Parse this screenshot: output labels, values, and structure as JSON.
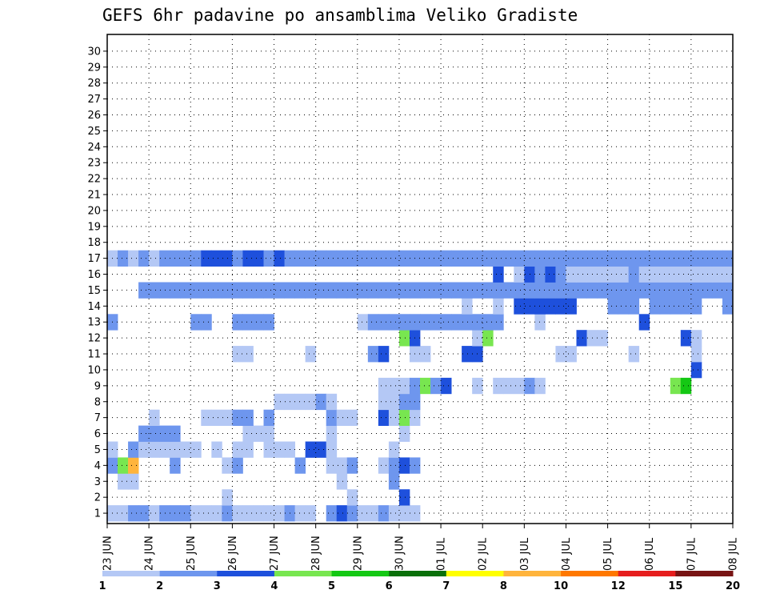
{
  "chart_data": {
    "type": "heatmap",
    "title": "GEFS 6hr padavine po ansamblima Veliko Gradiste",
    "y_member_labels": [
      "1",
      "2",
      "3",
      "4",
      "5",
      "6",
      "7",
      "8",
      "9",
      "10",
      "11",
      "12",
      "13",
      "14",
      "15",
      "16",
      "17",
      "18",
      "19",
      "20",
      "21",
      "22",
      "23",
      "24",
      "25",
      "26",
      "27",
      "28",
      "29",
      "30"
    ],
    "x_date_labels": [
      "23 JUN",
      "24 JUN",
      "25 JUN",
      "26 JUN",
      "27 JUN",
      "28 JUN",
      "29 JUN",
      "30 JUN",
      "01 JUL",
      "02 JUL",
      "03 JUL",
      "04 JUL",
      "05 JUL",
      "06 JUL",
      "07 JUL",
      "08 JUL"
    ],
    "x_steps_total": 60,
    "grid": "dotted",
    "colorbar": {
      "labels": [
        "1",
        "2",
        "3",
        "4",
        "5",
        "6",
        "7",
        "8",
        "10",
        "12",
        "15",
        "20"
      ],
      "colors": [
        "#b4c8f5",
        "#6e96ee",
        "#1e50dc",
        "#78e650",
        "#14c814",
        "#0a700a",
        "#ffff00",
        "#ffb43c",
        "#ff7800",
        "#e61e1e",
        "#781414"
      ]
    },
    "cells": [
      [
        1,
        1,
        0
      ],
      [
        1,
        2,
        0
      ],
      [
        1,
        3,
        1
      ],
      [
        1,
        4,
        1
      ],
      [
        1,
        5,
        0
      ],
      [
        1,
        6,
        1
      ],
      [
        1,
        7,
        1
      ],
      [
        1,
        8,
        1
      ],
      [
        1,
        9,
        0
      ],
      [
        1,
        10,
        0
      ],
      [
        1,
        11,
        0
      ],
      [
        1,
        12,
        1
      ],
      [
        1,
        13,
        0
      ],
      [
        1,
        14,
        0
      ],
      [
        1,
        15,
        0
      ],
      [
        1,
        16,
        0
      ],
      [
        1,
        17,
        0
      ],
      [
        1,
        18,
        1
      ],
      [
        1,
        19,
        0
      ],
      [
        1,
        20,
        0
      ],
      [
        1,
        22,
        1
      ],
      [
        1,
        23,
        2
      ],
      [
        1,
        24,
        1
      ],
      [
        1,
        25,
        0
      ],
      [
        1,
        26,
        0
      ],
      [
        1,
        27,
        1
      ],
      [
        1,
        28,
        0
      ],
      [
        1,
        29,
        0
      ],
      [
        1,
        30,
        0
      ],
      [
        2,
        12,
        0
      ],
      [
        2,
        24,
        0
      ],
      [
        2,
        29,
        2
      ],
      [
        3,
        2,
        0
      ],
      [
        3,
        3,
        0
      ],
      [
        3,
        23,
        0
      ],
      [
        3,
        28,
        1
      ],
      [
        4,
        1,
        1
      ],
      [
        4,
        2,
        3
      ],
      [
        4,
        3,
        7
      ],
      [
        4,
        7,
        1
      ],
      [
        4,
        12,
        0
      ],
      [
        4,
        13,
        1
      ],
      [
        4,
        19,
        1
      ],
      [
        4,
        22,
        0
      ],
      [
        4,
        23,
        0
      ],
      [
        4,
        24,
        1
      ],
      [
        4,
        27,
        0
      ],
      [
        4,
        28,
        1
      ],
      [
        4,
        29,
        2
      ],
      [
        4,
        30,
        1
      ],
      [
        5,
        1,
        0
      ],
      [
        5,
        3,
        1
      ],
      [
        5,
        4,
        0
      ],
      [
        5,
        5,
        0
      ],
      [
        5,
        6,
        0
      ],
      [
        5,
        7,
        0
      ],
      [
        5,
        8,
        0
      ],
      [
        5,
        9,
        0
      ],
      [
        5,
        11,
        0
      ],
      [
        5,
        13,
        0
      ],
      [
        5,
        14,
        0
      ],
      [
        5,
        16,
        0
      ],
      [
        5,
        17,
        0
      ],
      [
        5,
        18,
        0
      ],
      [
        5,
        20,
        2
      ],
      [
        5,
        21,
        2
      ],
      [
        5,
        22,
        0
      ],
      [
        5,
        28,
        0
      ],
      [
        6,
        4,
        1
      ],
      [
        6,
        5,
        1
      ],
      [
        6,
        6,
        1
      ],
      [
        6,
        7,
        1
      ],
      [
        6,
        14,
        0
      ],
      [
        6,
        15,
        0
      ],
      [
        6,
        16,
        0
      ],
      [
        6,
        22,
        0
      ],
      [
        6,
        29,
        0
      ],
      [
        7,
        5,
        0
      ],
      [
        7,
        10,
        0
      ],
      [
        7,
        11,
        0
      ],
      [
        7,
        12,
        0
      ],
      [
        7,
        13,
        1
      ],
      [
        7,
        14,
        1
      ],
      [
        7,
        16,
        1
      ],
      [
        7,
        22,
        1
      ],
      [
        7,
        23,
        0
      ],
      [
        7,
        24,
        0
      ],
      [
        7,
        27,
        2
      ],
      [
        7,
        28,
        0
      ],
      [
        7,
        29,
        3
      ],
      [
        7,
        30,
        0
      ],
      [
        8,
        17,
        0
      ],
      [
        8,
        18,
        0
      ],
      [
        8,
        19,
        0
      ],
      [
        8,
        20,
        0
      ],
      [
        8,
        21,
        1
      ],
      [
        8,
        22,
        0
      ],
      [
        8,
        27,
        0
      ],
      [
        8,
        28,
        0
      ],
      [
        8,
        29,
        1
      ],
      [
        8,
        30,
        1
      ],
      [
        9,
        27,
        0
      ],
      [
        9,
        28,
        0
      ],
      [
        9,
        29,
        0
      ],
      [
        9,
        30,
        1
      ],
      [
        9,
        31,
        3
      ],
      [
        9,
        32,
        1
      ],
      [
        9,
        33,
        2
      ],
      [
        9,
        36,
        0
      ],
      [
        9,
        38,
        0
      ],
      [
        9,
        39,
        0
      ],
      [
        9,
        40,
        0
      ],
      [
        9,
        41,
        1
      ],
      [
        9,
        42,
        0
      ],
      [
        9,
        55,
        3
      ],
      [
        9,
        56,
        4
      ],
      [
        10,
        57,
        2
      ],
      [
        11,
        13,
        0
      ],
      [
        11,
        14,
        0
      ],
      [
        11,
        20,
        0
      ],
      [
        11,
        26,
        1
      ],
      [
        11,
        27,
        2
      ],
      [
        11,
        30,
        0
      ],
      [
        11,
        31,
        0
      ],
      [
        11,
        35,
        2
      ],
      [
        11,
        36,
        2
      ],
      [
        11,
        44,
        0
      ],
      [
        11,
        45,
        0
      ],
      [
        11,
        51,
        0
      ],
      [
        11,
        57,
        0
      ],
      [
        12,
        29,
        3
      ],
      [
        12,
        30,
        2
      ],
      [
        12,
        36,
        0
      ],
      [
        12,
        37,
        3
      ],
      [
        12,
        46,
        2
      ],
      [
        12,
        47,
        0
      ],
      [
        12,
        48,
        0
      ],
      [
        12,
        56,
        2
      ],
      [
        12,
        57,
        0
      ],
      [
        13,
        1,
        1
      ],
      [
        13,
        9,
        1
      ],
      [
        13,
        10,
        1
      ],
      [
        13,
        13,
        1
      ],
      [
        13,
        14,
        1
      ],
      [
        13,
        15,
        1
      ],
      [
        13,
        16,
        1
      ],
      [
        13,
        25,
        0
      ],
      [
        13,
        26,
        1
      ],
      [
        13,
        27,
        1
      ],
      [
        13,
        28,
        1
      ],
      [
        13,
        29,
        1
      ],
      [
        13,
        30,
        1
      ],
      [
        13,
        31,
        1
      ],
      [
        13,
        32,
        1
      ],
      [
        13,
        33,
        1
      ],
      [
        13,
        34,
        1
      ],
      [
        13,
        35,
        1
      ],
      [
        13,
        36,
        1
      ],
      [
        13,
        37,
        1
      ],
      [
        13,
        38,
        1
      ],
      [
        13,
        42,
        0
      ],
      [
        13,
        52,
        2
      ],
      [
        14,
        35,
        0
      ],
      [
        14,
        38,
        0
      ],
      [
        14,
        40,
        2
      ],
      [
        14,
        41,
        2
      ],
      [
        14,
        42,
        2
      ],
      [
        14,
        43,
        2
      ],
      [
        14,
        44,
        2
      ],
      [
        14,
        45,
        2
      ],
      [
        14,
        49,
        1
      ],
      [
        14,
        50,
        1
      ],
      [
        14,
        51,
        1
      ],
      [
        14,
        53,
        1
      ],
      [
        14,
        54,
        1
      ],
      [
        14,
        55,
        1
      ],
      [
        14,
        56,
        1
      ],
      [
        14,
        57,
        1
      ],
      [
        14,
        60,
        1
      ],
      [
        15,
        4,
        1
      ],
      [
        15,
        5,
        1
      ],
      [
        15,
        6,
        1
      ],
      [
        15,
        7,
        1
      ],
      [
        15,
        8,
        1
      ],
      [
        15,
        9,
        1
      ],
      [
        15,
        10,
        1
      ],
      [
        15,
        11,
        1
      ],
      [
        15,
        12,
        1
      ],
      [
        15,
        13,
        1
      ],
      [
        15,
        14,
        1
      ],
      [
        15,
        15,
        1
      ],
      [
        15,
        16,
        1
      ],
      [
        15,
        17,
        1
      ],
      [
        15,
        18,
        1
      ],
      [
        15,
        19,
        1
      ],
      [
        15,
        20,
        1
      ],
      [
        15,
        21,
        1
      ],
      [
        15,
        22,
        1
      ],
      [
        15,
        23,
        1
      ],
      [
        15,
        24,
        1
      ],
      [
        15,
        25,
        1
      ],
      [
        15,
        26,
        1
      ],
      [
        15,
        27,
        1
      ],
      [
        15,
        28,
        1
      ],
      [
        15,
        29,
        1
      ],
      [
        15,
        30,
        1
      ],
      [
        15,
        31,
        1
      ],
      [
        15,
        32,
        1
      ],
      [
        15,
        33,
        1
      ],
      [
        15,
        34,
        1
      ],
      [
        15,
        35,
        1
      ],
      [
        15,
        36,
        1
      ],
      [
        15,
        37,
        1
      ],
      [
        15,
        38,
        1
      ],
      [
        15,
        39,
        1
      ],
      [
        15,
        40,
        1
      ],
      [
        15,
        41,
        1
      ],
      [
        15,
        42,
        1
      ],
      [
        15,
        43,
        1
      ],
      [
        15,
        44,
        1
      ],
      [
        15,
        45,
        1
      ],
      [
        15,
        46,
        1
      ],
      [
        15,
        47,
        1
      ],
      [
        15,
        48,
        1
      ],
      [
        15,
        49,
        1
      ],
      [
        15,
        50,
        1
      ],
      [
        15,
        51,
        1
      ],
      [
        15,
        52,
        1
      ],
      [
        15,
        53,
        1
      ],
      [
        15,
        54,
        1
      ],
      [
        15,
        55,
        1
      ],
      [
        15,
        56,
        1
      ],
      [
        15,
        57,
        1
      ],
      [
        15,
        58,
        1
      ],
      [
        15,
        59,
        1
      ],
      [
        15,
        60,
        1
      ],
      [
        16,
        38,
        2
      ],
      [
        16,
        40,
        0
      ],
      [
        16,
        41,
        2
      ],
      [
        16,
        42,
        1
      ],
      [
        16,
        43,
        2
      ],
      [
        16,
        44,
        1
      ],
      [
        16,
        45,
        0
      ],
      [
        16,
        46,
        0
      ],
      [
        16,
        47,
        0
      ],
      [
        16,
        48,
        0
      ],
      [
        16,
        49,
        0
      ],
      [
        16,
        50,
        0
      ],
      [
        16,
        51,
        1
      ],
      [
        16,
        52,
        0
      ],
      [
        16,
        53,
        0
      ],
      [
        16,
        54,
        0
      ],
      [
        16,
        55,
        0
      ],
      [
        16,
        56,
        0
      ],
      [
        16,
        57,
        0
      ],
      [
        16,
        58,
        0
      ],
      [
        16,
        59,
        0
      ],
      [
        16,
        60,
        0
      ],
      [
        17,
        1,
        0
      ],
      [
        17,
        2,
        1
      ],
      [
        17,
        3,
        0
      ],
      [
        17,
        4,
        1
      ],
      [
        17,
        5,
        0
      ],
      [
        17,
        6,
        1
      ],
      [
        17,
        7,
        1
      ],
      [
        17,
        8,
        1
      ],
      [
        17,
        9,
        1
      ],
      [
        17,
        10,
        2
      ],
      [
        17,
        11,
        2
      ],
      [
        17,
        12,
        2
      ],
      [
        17,
        13,
        1
      ],
      [
        17,
        14,
        2
      ],
      [
        17,
        15,
        2
      ],
      [
        17,
        16,
        1
      ],
      [
        17,
        17,
        2
      ],
      [
        17,
        18,
        1
      ],
      [
        17,
        19,
        1
      ],
      [
        17,
        20,
        1
      ],
      [
        17,
        21,
        1
      ],
      [
        17,
        22,
        1
      ],
      [
        17,
        23,
        1
      ],
      [
        17,
        24,
        1
      ],
      [
        17,
        25,
        1
      ],
      [
        17,
        26,
        1
      ],
      [
        17,
        27,
        1
      ],
      [
        17,
        28,
        1
      ],
      [
        17,
        29,
        1
      ],
      [
        17,
        30,
        1
      ],
      [
        17,
        31,
        1
      ],
      [
        17,
        32,
        1
      ],
      [
        17,
        33,
        1
      ],
      [
        17,
        34,
        1
      ],
      [
        17,
        35,
        1
      ],
      [
        17,
        36,
        1
      ],
      [
        17,
        37,
        1
      ],
      [
        17,
        38,
        1
      ],
      [
        17,
        39,
        1
      ],
      [
        17,
        40,
        1
      ],
      [
        17,
        41,
        1
      ],
      [
        17,
        42,
        1
      ],
      [
        17,
        43,
        1
      ],
      [
        17,
        44,
        1
      ],
      [
        17,
        45,
        1
      ],
      [
        17,
        46,
        1
      ],
      [
        17,
        47,
        1
      ],
      [
        17,
        48,
        1
      ],
      [
        17,
        49,
        1
      ],
      [
        17,
        50,
        1
      ],
      [
        17,
        51,
        1
      ],
      [
        17,
        52,
        1
      ],
      [
        17,
        53,
        1
      ],
      [
        17,
        54,
        1
      ],
      [
        17,
        55,
        1
      ],
      [
        17,
        56,
        1
      ],
      [
        17,
        57,
        1
      ],
      [
        17,
        58,
        1
      ],
      [
        17,
        59,
        1
      ],
      [
        17,
        60,
        1
      ]
    ]
  }
}
